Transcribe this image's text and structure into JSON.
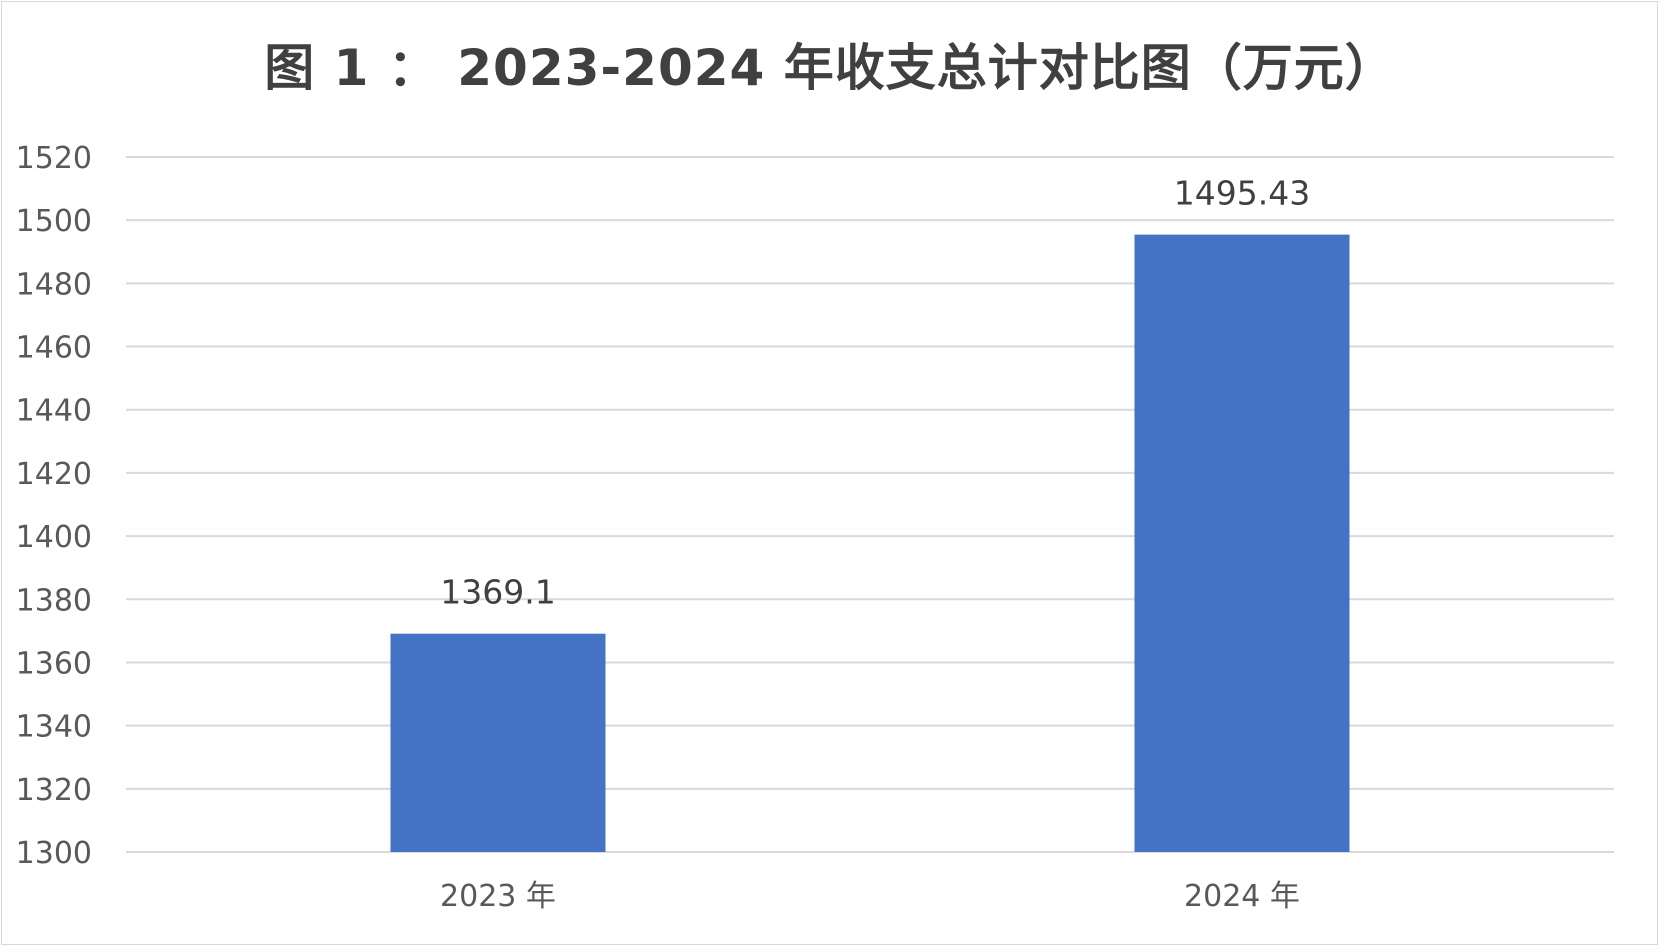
{
  "chart_data": {
    "type": "bar",
    "title": "图 1 ： 2023-2024 年收支总计对比图（万元）",
    "categories": [
      "2023 年",
      "2024 年"
    ],
    "values": [
      1369.1,
      1495.43
    ],
    "data_labels": [
      "1369.1",
      "1495.43"
    ],
    "ylim": [
      1300,
      1520
    ],
    "y_ticks": [
      1300,
      1320,
      1340,
      1360,
      1380,
      1400,
      1420,
      1440,
      1460,
      1480,
      1500,
      1520
    ],
    "grid": true,
    "legend": "none",
    "bar_color": "#4472C4",
    "grid_color": "#d9d9d9"
  }
}
